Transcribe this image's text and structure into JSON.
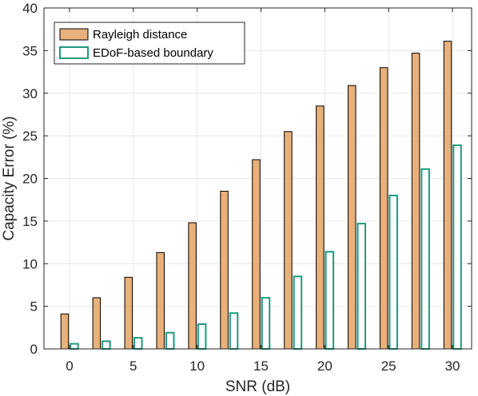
{
  "chart_data": {
    "type": "bar",
    "title": "",
    "xlabel": "SNR (dB)",
    "ylabel": "Capacity Error (%)",
    "x": [
      0,
      2.5,
      5,
      7.5,
      10,
      12.5,
      15,
      17.5,
      20,
      22.5,
      25,
      27.5,
      30
    ],
    "xlim": [
      -2,
      31.5
    ],
    "ylim": [
      0,
      40
    ],
    "xticks": [
      0,
      5,
      10,
      15,
      20,
      25,
      30
    ],
    "yticks": [
      0,
      5,
      10,
      15,
      20,
      25,
      30,
      35,
      40
    ],
    "grid": true,
    "legend_position": "top-left",
    "series": [
      {
        "name": "Rayleigh distance",
        "values": [
          4.1,
          6.0,
          8.4,
          11.3,
          14.8,
          18.5,
          22.2,
          25.5,
          28.5,
          30.9,
          33.0,
          34.7,
          36.1
        ],
        "color": "#E8B07A",
        "edge_color": "#000000",
        "filled": true
      },
      {
        "name": "EDoF-based boundary",
        "values": [
          0.6,
          0.9,
          1.3,
          1.9,
          2.9,
          4.2,
          6.0,
          8.5,
          11.4,
          14.7,
          18.0,
          21.1,
          23.9
        ],
        "color": "#FFFFFF",
        "edge_color": "#1F9A7A",
        "filled": false
      }
    ]
  }
}
